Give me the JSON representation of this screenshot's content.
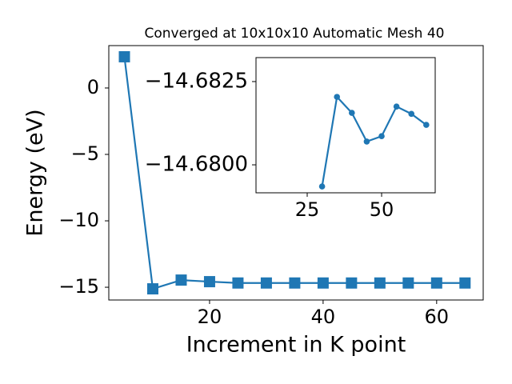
{
  "chart_data": [
    {
      "type": "line",
      "title": "Converged at 10x10x10 Automatic Mesh 40",
      "xlabel": "Increment in K point",
      "ylabel": "Energy (eV)",
      "x": [
        5,
        10,
        15,
        20,
        25,
        30,
        35,
        40,
        45,
        50,
        55,
        60,
        65
      ],
      "series": [
        {
          "color": "#1f77b4",
          "marker": "square",
          "values": [
            2.35,
            -15.12,
            -14.46,
            -14.58,
            -14.68,
            -14.68,
            -14.68,
            -14.68,
            -14.68,
            -14.68,
            -14.68,
            -14.68,
            -14.68
          ]
        }
      ],
      "xlim": [
        2.25,
        68.2
      ],
      "ylim": [
        -15.96,
        3.19
      ],
      "xticks": [
        20,
        40,
        60
      ],
      "yticks": [
        0,
        {
          "value": -5,
          "label": "−5"
        },
        {
          "value": -10,
          "label": "−10"
        },
        {
          "value": -15,
          "label": "−15"
        }
      ]
    },
    {
      "type": "line",
      "x": [
        30,
        35,
        40,
        45,
        50,
        55,
        60,
        65
      ],
      "series": [
        {
          "color": "#1f77b4",
          "marker": "circle",
          "values": [
            -14.67935,
            -14.68204,
            -14.68156,
            -14.6807,
            -14.68086,
            -14.68175,
            -14.68153,
            -14.6812
          ]
        }
      ],
      "xlim": [
        7.8,
        68
      ],
      "ylim": [
        -14.67916,
        -14.68322
      ],
      "xticks": [
        25,
        50
      ],
      "yticks": [
        {
          "value": -14.6825,
          "label": "−14.6825"
        },
        {
          "value": -14.68,
          "label": "−14.6800"
        }
      ]
    }
  ]
}
